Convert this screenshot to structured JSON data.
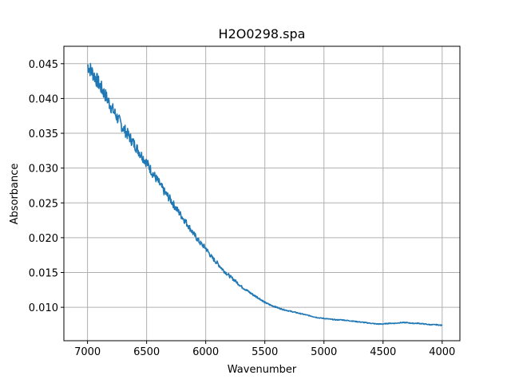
{
  "chart_data": {
    "type": "line",
    "title": "H2O0298.spa",
    "xlabel": "Wavenumber",
    "ylabel": "Absorbance",
    "xlim": [
      7200,
      3850
    ],
    "ylim": [
      0.0052,
      0.0475
    ],
    "x_inverted": true,
    "grid": true,
    "xticks": [
      7000,
      6500,
      6000,
      5500,
      5000,
      4500,
      4000
    ],
    "xtick_labels": [
      "7000",
      "6500",
      "6000",
      "5500",
      "5000",
      "4500",
      "4000"
    ],
    "yticks": [
      0.01,
      0.015,
      0.02,
      0.025,
      0.03,
      0.035,
      0.04,
      0.045
    ],
    "ytick_labels": [
      "0.010",
      "0.015",
      "0.020",
      "0.025",
      "0.030",
      "0.035",
      "0.040",
      "0.045"
    ],
    "series": [
      {
        "color": "#1f77b4",
        "x": [
          7000,
          6950,
          6900,
          6850,
          6800,
          6750,
          6700,
          6650,
          6600,
          6550,
          6500,
          6450,
          6400,
          6350,
          6300,
          6250,
          6200,
          6150,
          6100,
          6050,
          6000,
          5950,
          5900,
          5850,
          5800,
          5750,
          5700,
          5650,
          5600,
          5550,
          5500,
          5450,
          5400,
          5350,
          5300,
          5250,
          5200,
          5150,
          5100,
          5050,
          5000,
          4950,
          4900,
          4850,
          4800,
          4750,
          4700,
          4650,
          4600,
          4550,
          4500,
          4450,
          4400,
          4350,
          4300,
          4250,
          4200,
          4150,
          4100,
          4050,
          4000
        ],
        "y": [
          0.0448,
          0.0435,
          0.042,
          0.0405,
          0.0388,
          0.0373,
          0.0358,
          0.0346,
          0.0333,
          0.032,
          0.0308,
          0.0293,
          0.028,
          0.0266,
          0.0255,
          0.0242,
          0.023,
          0.0218,
          0.0205,
          0.0193,
          0.0185,
          0.0172,
          0.0163,
          0.0153,
          0.0145,
          0.0138,
          0.013,
          0.0124,
          0.0118,
          0.0113,
          0.0107,
          0.0103,
          0.01,
          0.0097,
          0.0095,
          0.0093,
          0.0091,
          0.0089,
          0.0087,
          0.0085,
          0.0084,
          0.0083,
          0.0082,
          0.0082,
          0.0081,
          0.008,
          0.0079,
          0.0078,
          0.0077,
          0.0076,
          0.0076,
          0.0077,
          0.0077,
          0.0078,
          0.0078,
          0.0077,
          0.0077,
          0.0076,
          0.0075,
          0.0075,
          0.0074
        ]
      }
    ]
  }
}
